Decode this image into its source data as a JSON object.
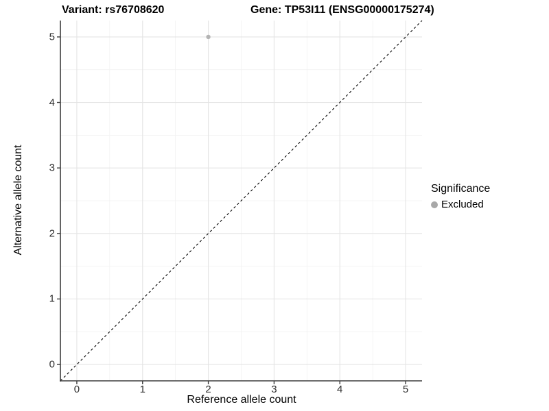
{
  "header": {
    "title_left": "Variant: rs76708620",
    "title_right": "Gene: TP53I11 (ENSG00000175274)"
  },
  "chart_data": {
    "type": "scatter",
    "title_left": "Variant: rs76708620",
    "title_right": "Gene: TP53I11 (ENSG00000175274)",
    "xlabel": "Reference allele count",
    "ylabel": "Alternative allele count",
    "xlim": [
      -0.25,
      5.25
    ],
    "ylim": [
      -0.25,
      5.25
    ],
    "xticks": [
      0,
      1,
      2,
      3,
      4,
      5
    ],
    "yticks": [
      0,
      1,
      2,
      3,
      4,
      5
    ],
    "minor_grid_positions": [
      0.5,
      1.5,
      2.5,
      3.5,
      4.5
    ],
    "grid": true,
    "series": [
      {
        "name": "Excluded",
        "points": [
          {
            "x": 2,
            "y": 5
          }
        ]
      }
    ],
    "reference_line": {
      "type": "abline",
      "intercept": 0,
      "slope": 1,
      "style": "dashed"
    },
    "legend": {
      "title": "Significance",
      "position": "right",
      "entries": [
        {
          "label": "Excluded",
          "color": "#a8a8a8",
          "marker": "circle"
        }
      ]
    },
    "colors": {
      "point": "#b4b4b4",
      "grid_major": "#e4e4e4",
      "grid_minor": "#f1f1f1",
      "axis": "#3c3c3c",
      "reference_line": "#000000",
      "tick": "#3c3c3c"
    }
  }
}
